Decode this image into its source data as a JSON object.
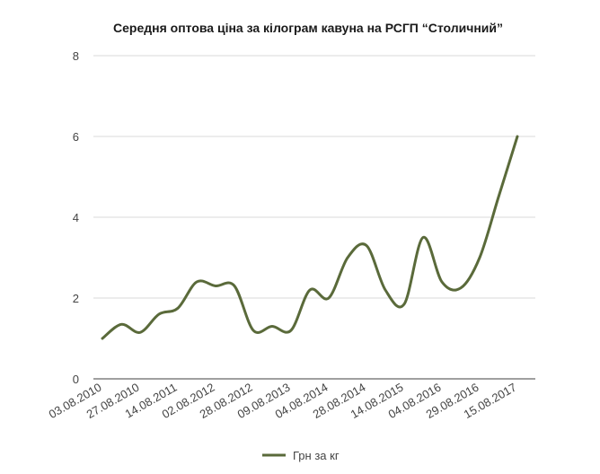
{
  "chart_data": {
    "type": "line",
    "title": "Середня оптова ціна за кілограм кавуна на РСГП “Столичний”",
    "xlabel": "",
    "ylabel": "",
    "ylim": [
      0,
      8
    ],
    "yticks": [
      "0",
      "2",
      "4",
      "6",
      "8"
    ],
    "grid": true,
    "legend_position": "bottom",
    "categories": [
      "03.08.2010",
      "27.08.2010",
      "14.08.2011",
      "02.08.2012",
      "28.08.2012",
      "09.08.2013",
      "04.08.2014",
      "28.08.2014",
      "14.08.2015",
      "04.08.2016",
      "29.08.2016",
      "15.08.2017"
    ],
    "x_positions": [
      0,
      1,
      2,
      3,
      4,
      5,
      6,
      7,
      8,
      9,
      10,
      11
    ],
    "x_range": [
      0,
      11.5
    ],
    "series": [
      {
        "name": "Грн за кг",
        "color": "#5a6a3a",
        "x": [
          0,
          0.5,
          1,
          1.5,
          2,
          2.5,
          3,
          3.5,
          4,
          4.5,
          5,
          5.5,
          6,
          6.5,
          7,
          7.5,
          8,
          8.5,
          9,
          9.5,
          10,
          10.5,
          11
        ],
        "values": [
          1.0,
          1.35,
          1.15,
          1.6,
          1.75,
          2.4,
          2.3,
          2.3,
          1.2,
          1.3,
          1.2,
          2.2,
          2.0,
          3.0,
          3.3,
          2.2,
          1.85,
          3.5,
          2.4,
          2.25,
          3.0,
          4.5,
          6.0
        ]
      }
    ]
  }
}
